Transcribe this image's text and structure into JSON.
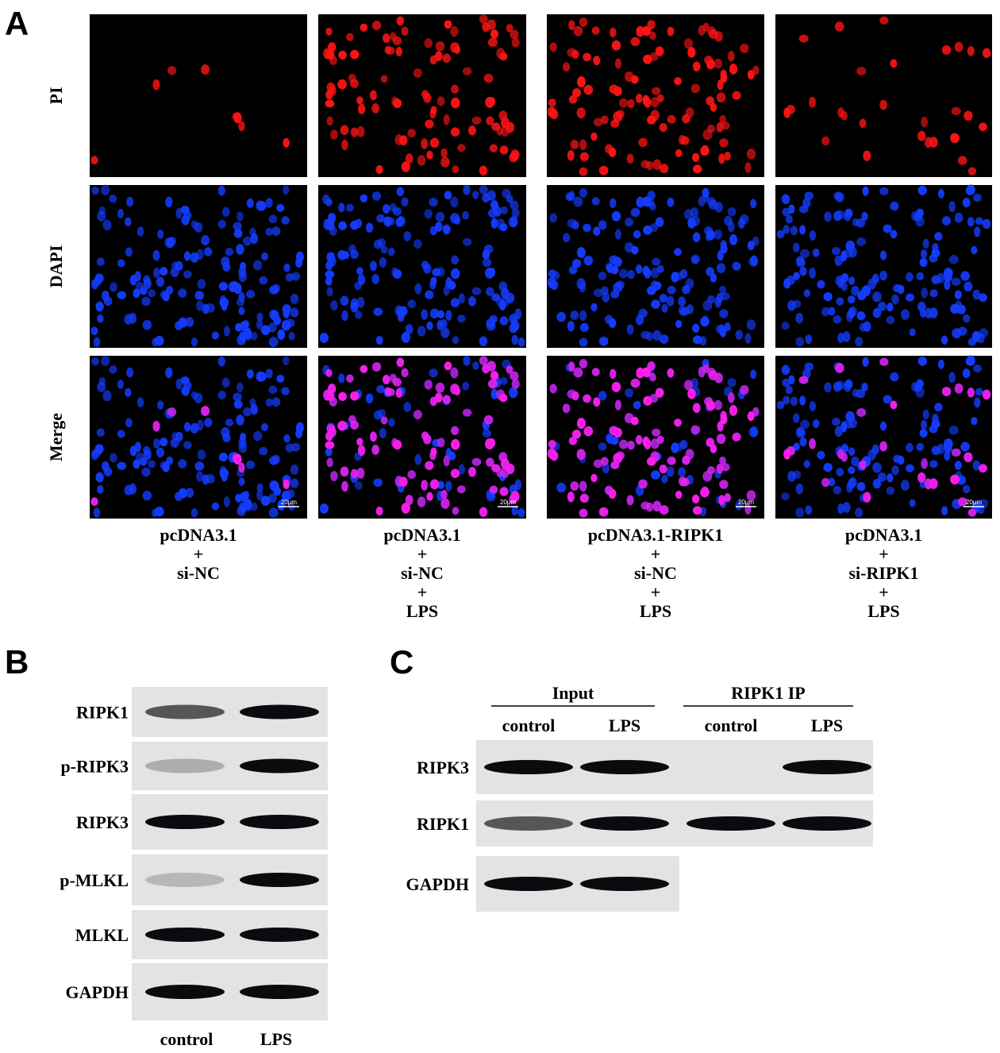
{
  "panel_a": {
    "label": "A",
    "rows": [
      "PI",
      "DAPI",
      "Merge"
    ],
    "scale_bar": "20μm",
    "groups": [
      [
        "pcDNA3.1",
        "+",
        "si-NC"
      ],
      [
        "pcDNA3.1",
        "+",
        "si-NC",
        "+",
        "LPS"
      ],
      [
        "pcDNA3.1-RIPK1",
        "+",
        "si-NC",
        "+",
        "LPS"
      ],
      [
        "pcDNA3.1",
        "+",
        "si-RIPK1",
        "+",
        "LPS"
      ]
    ]
  },
  "panel_b": {
    "label": "B",
    "rows": [
      "RIPK1",
      "p-RIPK3",
      "RIPK3",
      "p-MLKL",
      "MLKL",
      "GAPDH"
    ],
    "columns": [
      "control",
      "LPS"
    ]
  },
  "panel_c": {
    "label": "C",
    "groups": [
      "Input",
      "RIPK1 IP"
    ],
    "columns": [
      "control",
      "LPS",
      "control",
      "LPS"
    ],
    "rows": [
      "RIPK3",
      "RIPK1",
      "GAPDH"
    ]
  }
}
